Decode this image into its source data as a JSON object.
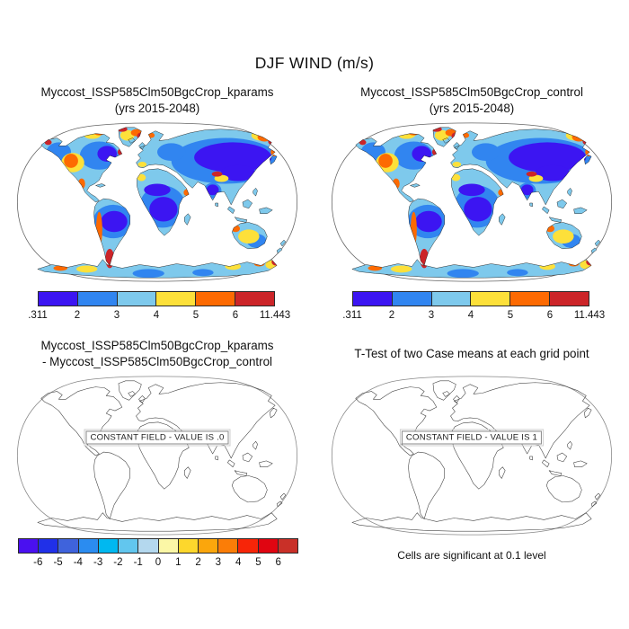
{
  "figure": {
    "title": "DJF WIND (m/s)",
    "note_significance": "Cells are significant at 0.1 level"
  },
  "panels": {
    "kparams": {
      "title_line1": "Myccost_ISSP585Clm50BgcCrop_kparams",
      "title_line2": "(yrs 2015-2048)"
    },
    "control": {
      "title_line1": "Myccost_ISSP585Clm50BgcCrop_control",
      "title_line2": "(yrs 2015-2048)"
    },
    "difference": {
      "title_line1": "Myccost_ISSP585Clm50BgcCrop_kparams",
      "title_line2": "- Myccost_ISSP585Clm50BgcCrop_control",
      "constant_field_label": "CONSTANT FIELD - VALUE IS .0"
    },
    "ttest": {
      "title_line1": "T-Test of two Case means at each grid point",
      "constant_field_label": "CONSTANT FIELD - VALUE IS 1"
    }
  },
  "colorbars": {
    "wind": {
      "labels": [
        ".311",
        "2",
        "3",
        "4",
        "5",
        "6",
        "11.443"
      ],
      "colors": [
        "#3c15f2",
        "#3185f0",
        "#7ec9ec",
        "#fde03a",
        "#fd6a02",
        "#cc2529"
      ]
    },
    "difference": {
      "labels": [
        "-6",
        "-5",
        "-4",
        "-3",
        "-2",
        "-1",
        "0",
        "1",
        "2",
        "3",
        "4",
        "5",
        "6"
      ],
      "colors": [
        "#4a10f0",
        "#2030e8",
        "#3f63dc",
        "#2b8cf0",
        "#00b8f0",
        "#62c6ee",
        "#b4d8ee",
        "#fbf7a6",
        "#fdd72c",
        "#fba60c",
        "#fb7d07",
        "#f72508",
        "#e00511",
        "#c93028"
      ]
    }
  },
  "chart_data": [
    {
      "type": "heatmap",
      "title": "Myccost_ISSP585Clm50BgcCrop_kparams (yrs 2015-2048)",
      "variable": "DJF WIND (m/s)",
      "projection": "Robinson world map, filled contours over land only",
      "levels": [
        0.311,
        2,
        3,
        4,
        5,
        6,
        11.443
      ],
      "palette": [
        "#3c15f2",
        "#3185f0",
        "#7ec9ec",
        "#fde03a",
        "#fd6a02",
        "#cc2529"
      ],
      "min": 0.311,
      "max": 11.443,
      "legend_position": "below panel"
    },
    {
      "type": "heatmap",
      "title": "Myccost_ISSP585Clm50BgcCrop_control (yrs 2015-2048)",
      "variable": "DJF WIND (m/s)",
      "projection": "Robinson world map, filled contours over land only",
      "levels": [
        0.311,
        2,
        3,
        4,
        5,
        6,
        11.443
      ],
      "palette": [
        "#3c15f2",
        "#3185f0",
        "#7ec9ec",
        "#fde03a",
        "#fd6a02",
        "#cc2529"
      ],
      "min": 0.311,
      "max": 11.443,
      "legend_position": "below panel"
    },
    {
      "type": "heatmap",
      "title": "Myccost_ISSP585Clm50BgcCrop_kparams - Myccost_ISSP585Clm50BgcCrop_control",
      "variable": "DJF WIND difference (m/s)",
      "projection": "Robinson world map, outlines only",
      "constant_field_value": 0,
      "annotation": "CONSTANT FIELD - VALUE IS .0",
      "levels": [
        -6,
        -5,
        -4,
        -3,
        -2,
        -1,
        0,
        1,
        2,
        3,
        4,
        5,
        6
      ],
      "palette": [
        "#4a10f0",
        "#2030e8",
        "#3f63dc",
        "#2b8cf0",
        "#00b8f0",
        "#62c6ee",
        "#b4d8ee",
        "#fbf7a6",
        "#fdd72c",
        "#fba60c",
        "#fb7d07",
        "#f72508",
        "#e00511",
        "#c93028"
      ],
      "legend_position": "below panel"
    },
    {
      "type": "heatmap",
      "title": "T-Test of two Case means at each grid point",
      "projection": "Robinson world map, outlines only",
      "constant_field_value": 1,
      "annotation": "CONSTANT FIELD - VALUE IS 1",
      "note": "Cells are significant at 0.1 level"
    }
  ]
}
